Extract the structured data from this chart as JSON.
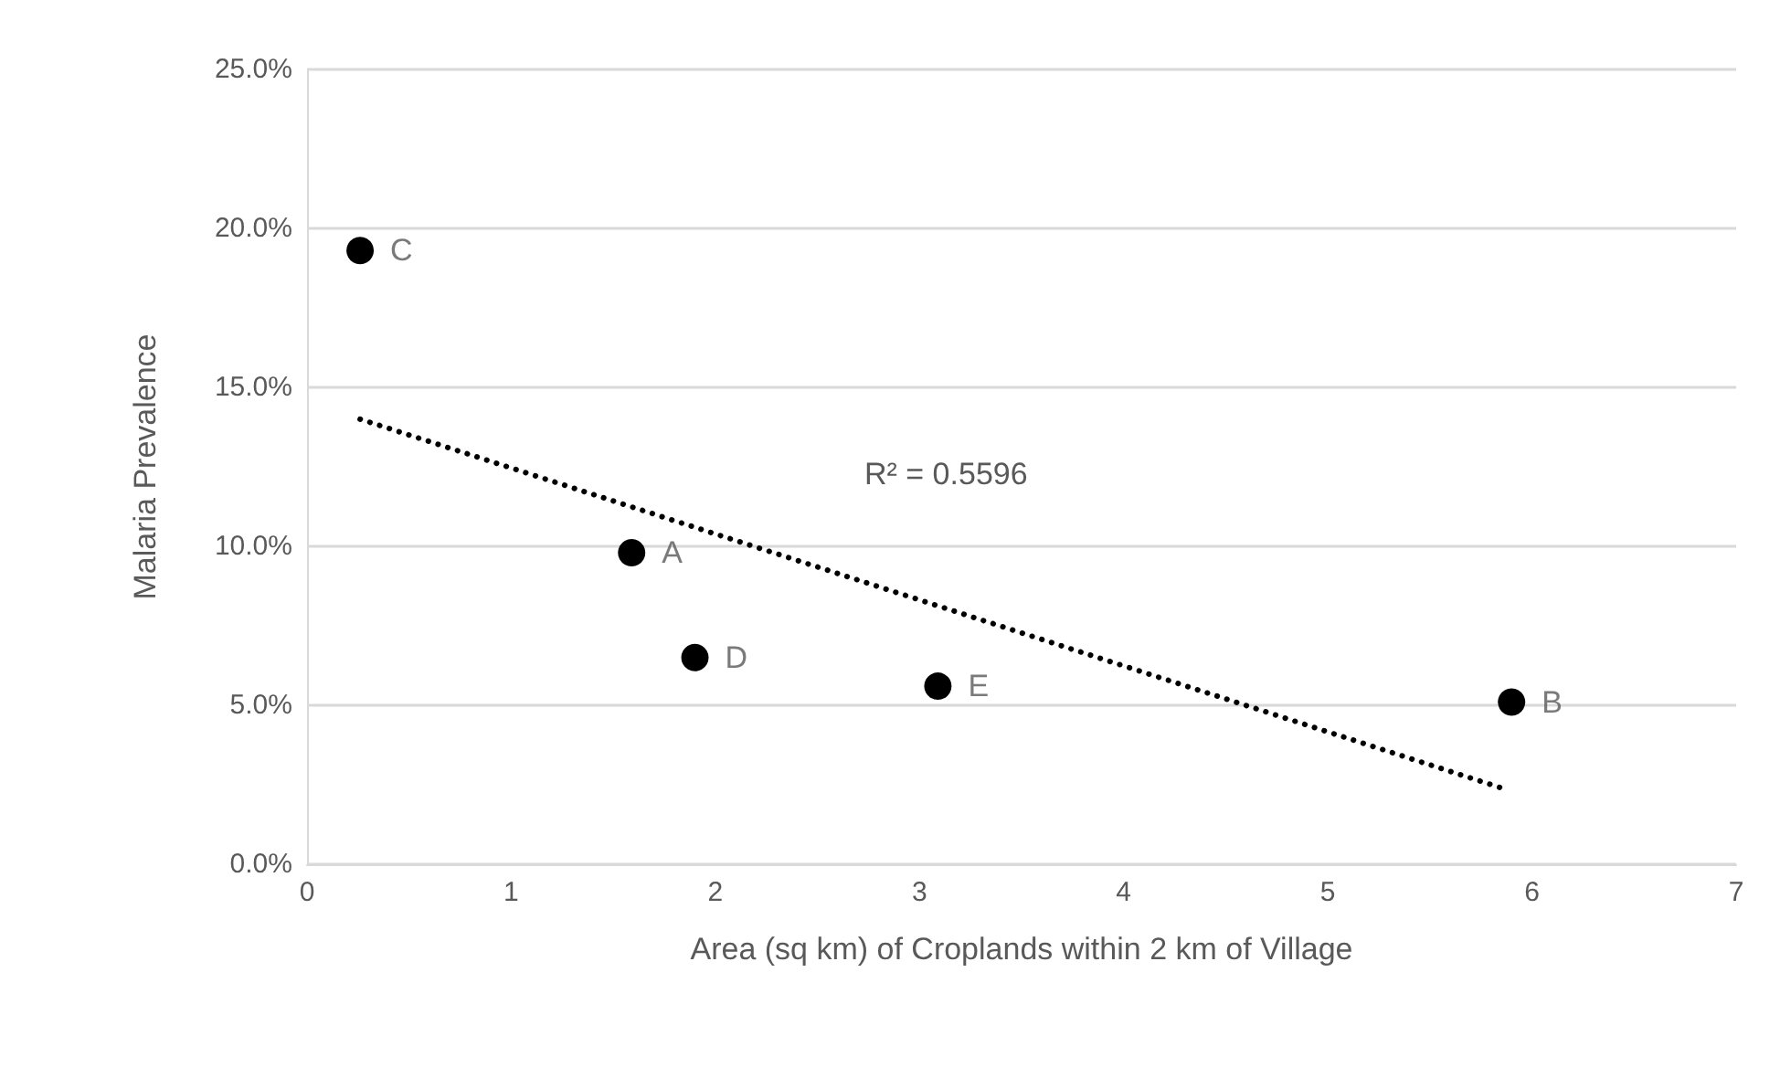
{
  "chart_data": {
    "type": "scatter",
    "xlabel": "Area (sq km) of Croplands within 2 km of Village",
    "ylabel": "Malaria Prevalence",
    "series": [
      {
        "color": "#000000",
        "x": [
          0.26,
          1.59,
          1.9,
          3.09,
          5.9
        ],
        "values": [
          19.3,
          9.8,
          6.5,
          5.6,
          5.1
        ],
        "marker": "circle"
      },
      {
        "type": "line",
        "color": "#000000",
        "x": [
          0.26,
          5.85
        ],
        "values": [
          14.0,
          2.4
        ],
        "line_style": "dotted",
        "marker": "none"
      }
    ],
    "annotations": [
      {
        "text": "C",
        "x": 0.26,
        "y": 19.3
      },
      {
        "text": "A",
        "x": 1.59,
        "y": 9.8
      },
      {
        "text": "D",
        "x": 1.9,
        "y": 6.5
      },
      {
        "text": "E",
        "x": 3.09,
        "y": 5.6
      },
      {
        "text": "B",
        "x": 5.9,
        "y": 5.1
      },
      "R² = 0.5596"
    ],
    "xlim": [
      0,
      7
    ],
    "xticks": [
      0,
      1,
      2,
      3,
      4,
      5,
      6,
      7
    ],
    "ylim": [
      0,
      25
    ],
    "yticks": [
      {
        "value": 0,
        "label": "0.0%"
      },
      {
        "value": 5,
        "label": "5.0%"
      },
      {
        "value": 10,
        "label": "10.0%"
      },
      {
        "value": 15,
        "label": "15.0%"
      },
      {
        "value": 20,
        "label": "20.0%"
      },
      {
        "value": 25,
        "label": "25.0%"
      }
    ],
    "grid": "y"
  }
}
